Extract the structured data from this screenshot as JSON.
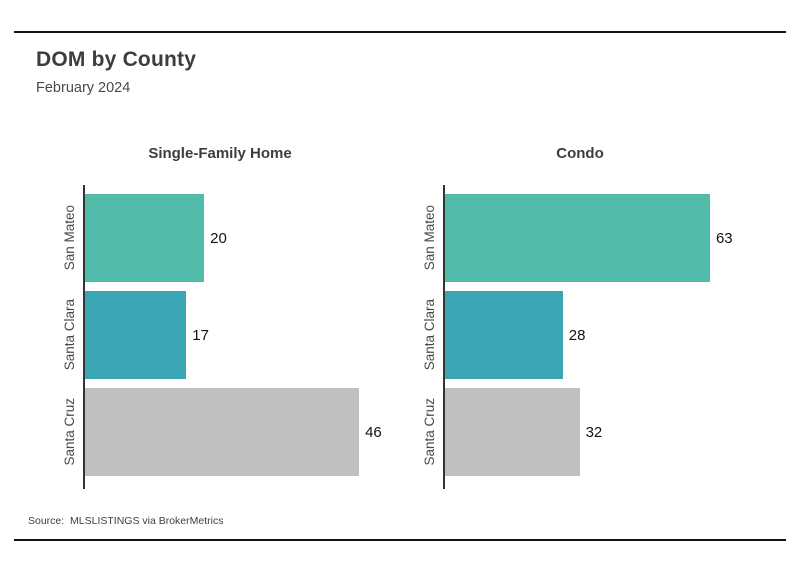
{
  "page": {
    "title": "DOM by County",
    "subtitle": "February 2024",
    "source": "Source:  MLSLISTINGS via BrokerMetrics"
  },
  "colors": {
    "san_mateo_bar": "#50bca9",
    "santa_clara_bar": "#3aa5b3",
    "santa_cruz_bar": "#c0c0c0",
    "axis": "#343434",
    "rule": "#141414",
    "title_text": "#3d3d3d",
    "value_text": "#121212"
  },
  "chart_data": [
    {
      "type": "bar",
      "orientation": "horizontal",
      "title": "Single-Family Home",
      "categories": [
        "San Mateo",
        "Santa Clara",
        "Santa Cruz"
      ],
      "values": [
        20,
        17,
        46
      ],
      "xlim": [
        0,
        48
      ],
      "bar_colors": [
        "#50bca9",
        "#3aa5b3",
        "#c0c0c0"
      ],
      "grid": false,
      "legend": "none",
      "value_labels": "end-of-bar"
    },
    {
      "type": "bar",
      "orientation": "horizontal",
      "title": "Condo",
      "categories": [
        "San Mateo",
        "Santa Clara",
        "Santa Cruz"
      ],
      "values": [
        63,
        28,
        32
      ],
      "xlim": [
        0,
        68
      ],
      "bar_colors": [
        "#50bca9",
        "#3aa5b3",
        "#c0c0c0"
      ],
      "grid": false,
      "legend": "none",
      "value_labels": "end-of-bar"
    }
  ]
}
